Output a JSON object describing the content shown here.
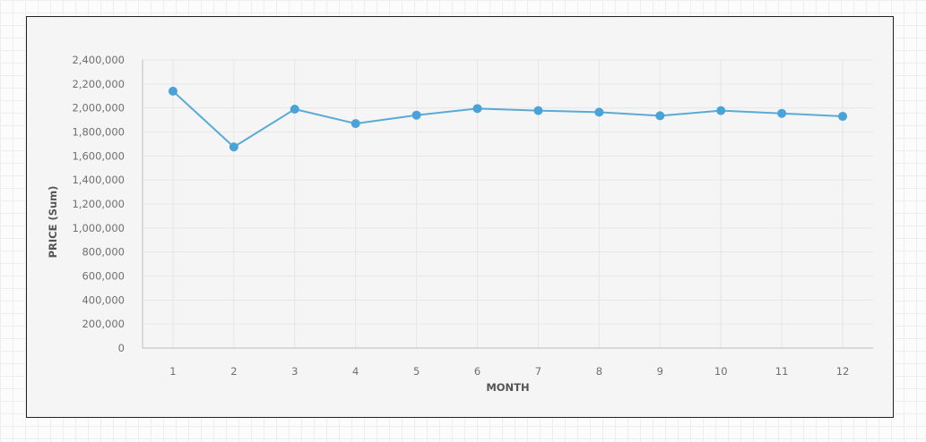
{
  "chart_data": {
    "type": "line",
    "title": "",
    "xlabel": "MONTH",
    "ylabel": "PRICE (Sum)",
    "categories": [
      "1",
      "2",
      "3",
      "4",
      "5",
      "6",
      "7",
      "8",
      "9",
      "10",
      "11",
      "12"
    ],
    "series": [
      {
        "values": [
          2140000,
          1675000,
          1990000,
          1870000,
          1940000,
          1995000,
          1978000,
          1965000,
          1935000,
          1978000,
          1955000,
          1930000
        ]
      }
    ],
    "ylim": [
      0,
      2400000
    ],
    "yticks": [
      0,
      200000,
      400000,
      600000,
      800000,
      1000000,
      1200000,
      1400000,
      1600000,
      1800000,
      2000000,
      2200000,
      2400000
    ],
    "ytick_labels": [
      "0",
      "200,000",
      "400,000",
      "600,000",
      "800,000",
      "1,000,000",
      "1,200,000",
      "1,400,000",
      "1,600,000",
      "1,800,000",
      "2,000,000",
      "2,200,000",
      "2,400,000"
    ],
    "grid": true,
    "legend": "none",
    "colors": {
      "line": "#5aaad6",
      "point": "#4aa3d8",
      "grid": "#e6e6e6",
      "axis": "#bdbdbd"
    }
  }
}
